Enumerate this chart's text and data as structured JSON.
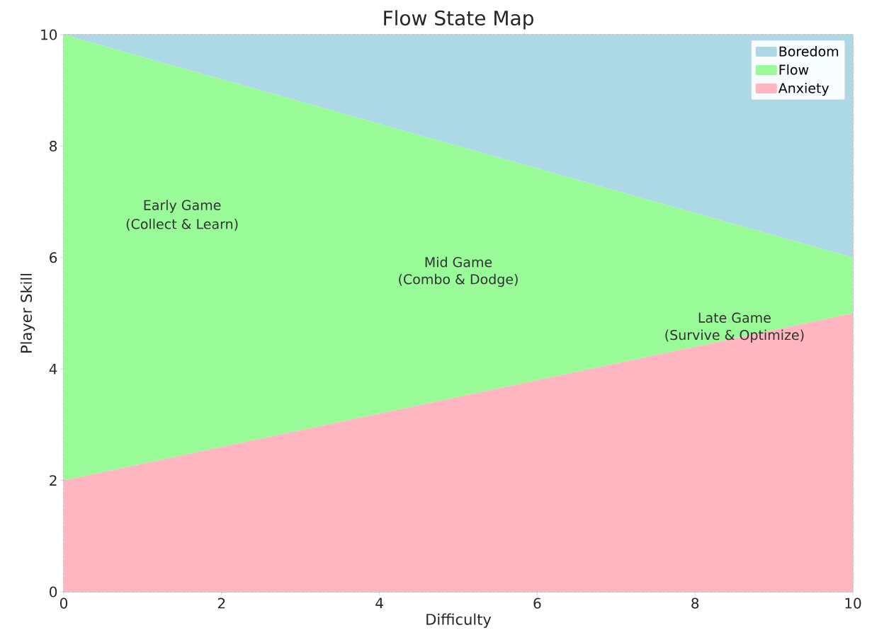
{
  "chart_data": {
    "type": "area",
    "title": "Flow State Map",
    "xlabel": "Difficulty",
    "ylabel": "Player Skill",
    "x": [
      0,
      2,
      4,
      6,
      8,
      10
    ],
    "stacked": true,
    "series": [
      {
        "name": "Anxiety",
        "color": "#ffb6c1",
        "values": [
          2,
          2.6,
          3.2,
          3.8,
          4.4,
          5
        ]
      },
      {
        "name": "Flow",
        "color": "#98fb98",
        "values": [
          8,
          6.6,
          5.2,
          3.8,
          2.4,
          1
        ]
      },
      {
        "name": "Boredom",
        "color": "#add8e6",
        "values": [
          0,
          0.8,
          1.6,
          2.4,
          3.2,
          4
        ]
      }
    ],
    "xlim": [
      0,
      10
    ],
    "ylim": [
      0,
      10
    ],
    "xticks": [
      0,
      2,
      4,
      6,
      8,
      10
    ],
    "yticks": [
      0,
      2,
      4,
      6,
      8,
      10
    ],
    "grid": true,
    "legend": "top right",
    "annotations": [
      "Early Game",
      "(Collect & Learn)",
      "Mid Game",
      "(Combo & Dodge)",
      "Late Game",
      "(Survive & Optimize)"
    ]
  }
}
